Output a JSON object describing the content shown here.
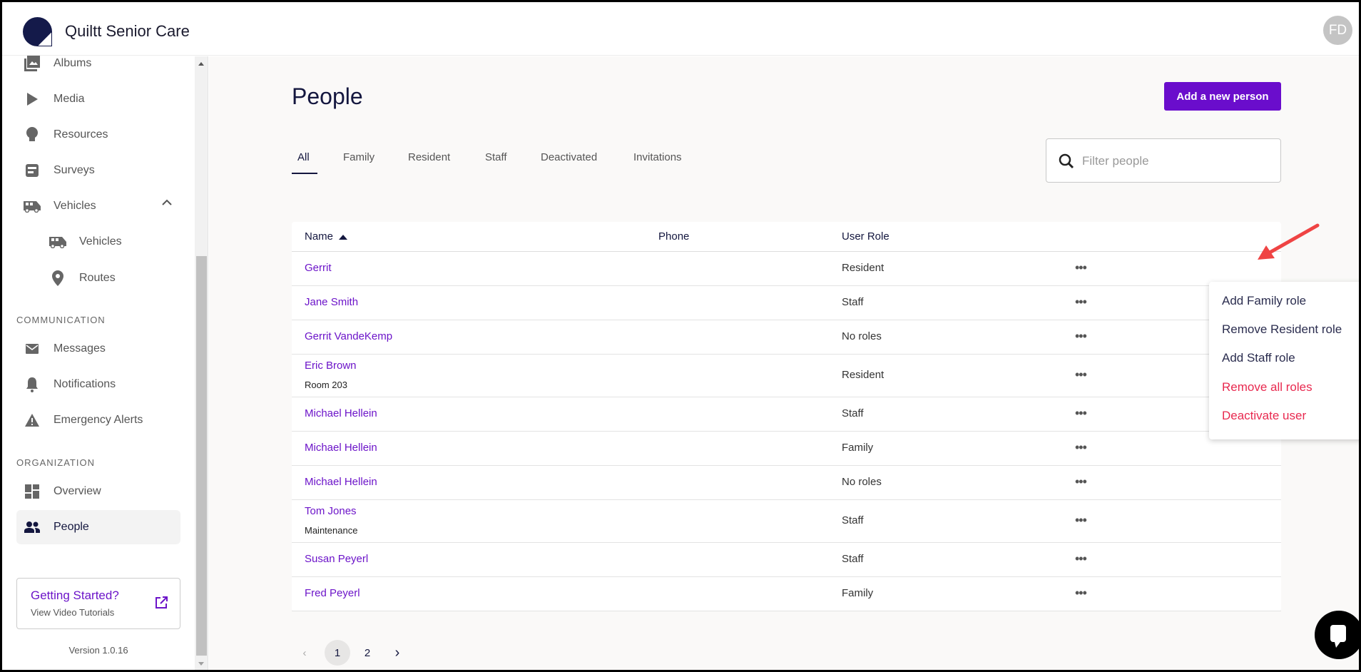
{
  "app": {
    "title": "Quiltt Senior Care",
    "avatar_initials": "FD"
  },
  "sidebar": {
    "items": [
      {
        "label": "Albums",
        "icon": "albums-icon"
      },
      {
        "label": "Media",
        "icon": "play-icon"
      },
      {
        "label": "Resources",
        "icon": "lightbulb-icon"
      },
      {
        "label": "Surveys",
        "icon": "survey-icon"
      },
      {
        "label": "Vehicles",
        "icon": "van-icon",
        "expanded": true
      },
      {
        "label": "Vehicles",
        "icon": "van-icon"
      },
      {
        "label": "Routes",
        "icon": "location-pin-icon"
      }
    ],
    "communication_label": "COMMUNICATION",
    "communication": [
      {
        "label": "Messages",
        "icon": "mail-icon"
      },
      {
        "label": "Notifications",
        "icon": "bell-icon"
      },
      {
        "label": "Emergency Alerts",
        "icon": "warning-icon"
      }
    ],
    "organization_label": "ORGANIZATION",
    "organization": [
      {
        "label": "Overview",
        "icon": "dashboard-icon"
      },
      {
        "label": "People",
        "icon": "people-icon",
        "active": true
      }
    ],
    "getting_started": {
      "title": "Getting Started?",
      "subtitle": "View Video Tutorials"
    },
    "version": "Version 1.0.16"
  },
  "main": {
    "title": "People",
    "add_button": "Add a new person",
    "tabs": [
      "All",
      "Family",
      "Resident",
      "Staff",
      "Deactivated",
      "Invitations"
    ],
    "active_tab": "All",
    "filter_placeholder": "Filter people",
    "columns": {
      "name": "Name",
      "phone": "Phone",
      "role": "User Role"
    },
    "rows": [
      {
        "name": "Gerrit",
        "sub": "",
        "role": "Resident"
      },
      {
        "name": "Jane Smith",
        "sub": "",
        "role": "Staff"
      },
      {
        "name": "Gerrit VandeKemp",
        "sub": "",
        "role": "No roles"
      },
      {
        "name": "Eric Brown",
        "sub": "Room 203",
        "role": "Resident"
      },
      {
        "name": "Michael Hellein",
        "sub": "",
        "role": "Staff"
      },
      {
        "name": "Michael Hellein",
        "sub": "",
        "role": "Family"
      },
      {
        "name": "Michael Hellein",
        "sub": "",
        "role": "No roles"
      },
      {
        "name": "Tom Jones",
        "sub": "Maintenance",
        "role": "Staff"
      },
      {
        "name": "Susan Peyerl",
        "sub": "",
        "role": "Staff"
      },
      {
        "name": "Fred Peyerl",
        "sub": "",
        "role": "Family"
      }
    ],
    "row_menu": [
      "Add Family role",
      "Remove Resident role",
      "Add Staff role",
      "Remove all roles",
      "Deactivate user"
    ],
    "pagination": {
      "pages": [
        "1",
        "2"
      ],
      "current": "1"
    }
  },
  "colors": {
    "accent": "#6a0dcc",
    "danger": "#e8294f",
    "navy": "#14173f",
    "annotation_arrow": "#ef4444"
  }
}
